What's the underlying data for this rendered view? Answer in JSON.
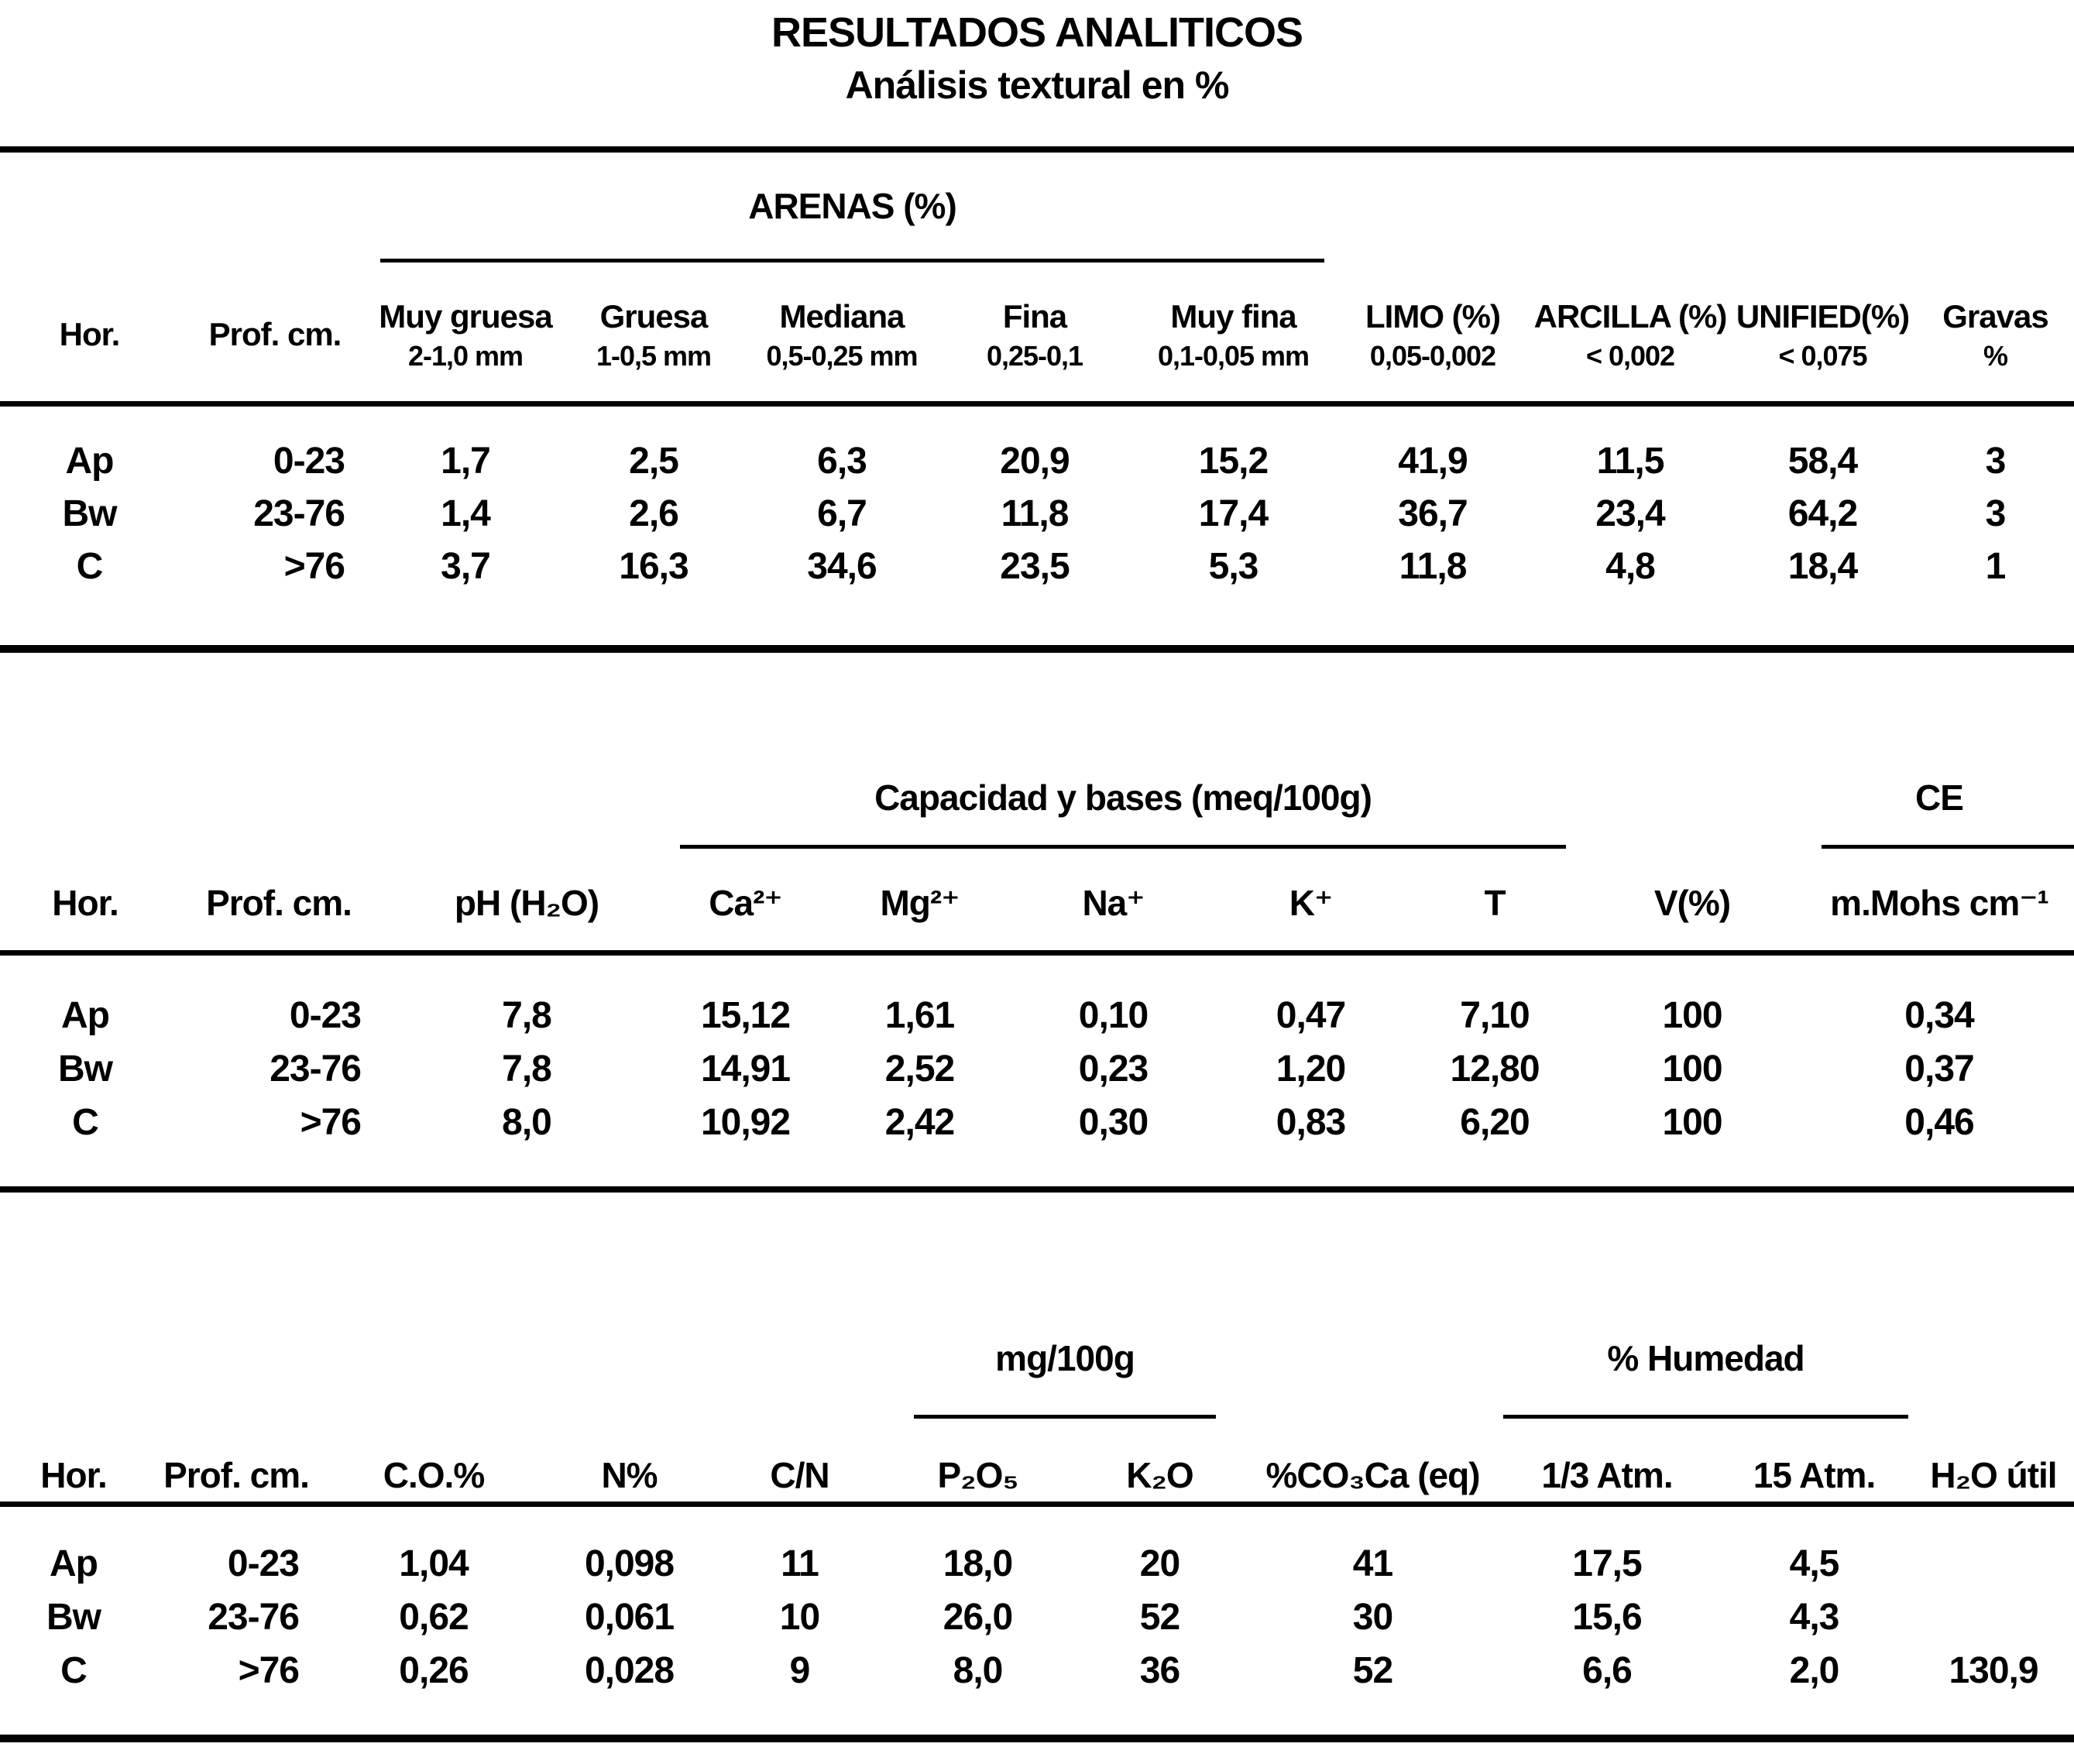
{
  "colors": {
    "ink": "#000000",
    "paper": "#ffffff"
  },
  "title": {
    "line1": "RESULTADOS ANALITICOS",
    "line2": "Análisis textural en %"
  },
  "table1": {
    "group": "ARENAS (%)",
    "columns": [
      {
        "label": "Hor.",
        "sub": ""
      },
      {
        "label": "Prof. cm.",
        "sub": ""
      },
      {
        "label": "Muy gruesa",
        "sub": "2-1,0 mm"
      },
      {
        "label": "Gruesa",
        "sub": "1-0,5 mm"
      },
      {
        "label": "Mediana",
        "sub": "0,5-0,25 mm"
      },
      {
        "label": "Fina",
        "sub": "0,25-0,1"
      },
      {
        "label": "Muy fina",
        "sub": "0,1-0,05 mm"
      },
      {
        "label": "LIMO (%)",
        "sub": "0,05-0,002"
      },
      {
        "label": "ARCILLA (%)",
        "sub": "< 0,002"
      },
      {
        "label": "UNIFIED(%)",
        "sub": "< 0,075"
      },
      {
        "label": "Gravas",
        "sub": "%"
      }
    ],
    "rows": [
      [
        "Ap",
        "0-23",
        "1,7",
        "2,5",
        "6,3",
        "20,9",
        "15,2",
        "41,9",
        "11,5",
        "58,4",
        "3"
      ],
      [
        "Bw",
        "23-76",
        "1,4",
        "2,6",
        "6,7",
        "11,8",
        "17,4",
        "36,7",
        "23,4",
        "64,2",
        "3"
      ],
      [
        "C",
        ">76",
        "3,7",
        "16,3",
        "34,6",
        "23,5",
        "5,3",
        "11,8",
        "4,8",
        "18,4",
        "1"
      ]
    ]
  },
  "table2": {
    "group_cap": "Capacidad y bases (meq/100g)",
    "group_ce": "CE",
    "columns": [
      "Hor.",
      "Prof. cm.",
      "pH (H₂O)",
      "Ca²⁺",
      "Mg²⁺",
      "Na⁺",
      "K⁺",
      "T",
      "V(%)",
      "m.Mohs cm⁻¹"
    ],
    "rows": [
      [
        "Ap",
        "0-23",
        "7,8",
        "15,12",
        "1,61",
        "0,10",
        "0,47",
        "7,10",
        "100",
        "0,34"
      ],
      [
        "Bw",
        "23-76",
        "7,8",
        "14,91",
        "2,52",
        "0,23",
        "1,20",
        "12,80",
        "100",
        "0,37"
      ],
      [
        "C",
        ">76",
        "8,0",
        "10,92",
        "2,42",
        "0,30",
        "0,83",
        "6,20",
        "100",
        "0,46"
      ]
    ]
  },
  "table3": {
    "group_mg": "mg/100g",
    "group_hum": "% Humedad",
    "columns": [
      "Hor.",
      "Prof. cm.",
      "C.O.%",
      "N%",
      "C/N",
      "P₂O₅",
      "K₂O",
      "%CO₃Ca (eq)",
      "1/3 Atm.",
      "15 Atm.",
      "H₂O útil"
    ],
    "rows": [
      [
        "Ap",
        "0-23",
        "1,04",
        "0,098",
        "11",
        "18,0",
        "20",
        "41",
        "17,5",
        "4,5",
        ""
      ],
      [
        "Bw",
        "23-76",
        "0,62",
        "0,061",
        "10",
        "26,0",
        "52",
        "30",
        "15,6",
        "4,3",
        ""
      ],
      [
        "C",
        ">76",
        "0,26",
        "0,028",
        "9",
        "8,0",
        "36",
        "52",
        "6,6",
        "2,0",
        "130,9"
      ]
    ]
  }
}
